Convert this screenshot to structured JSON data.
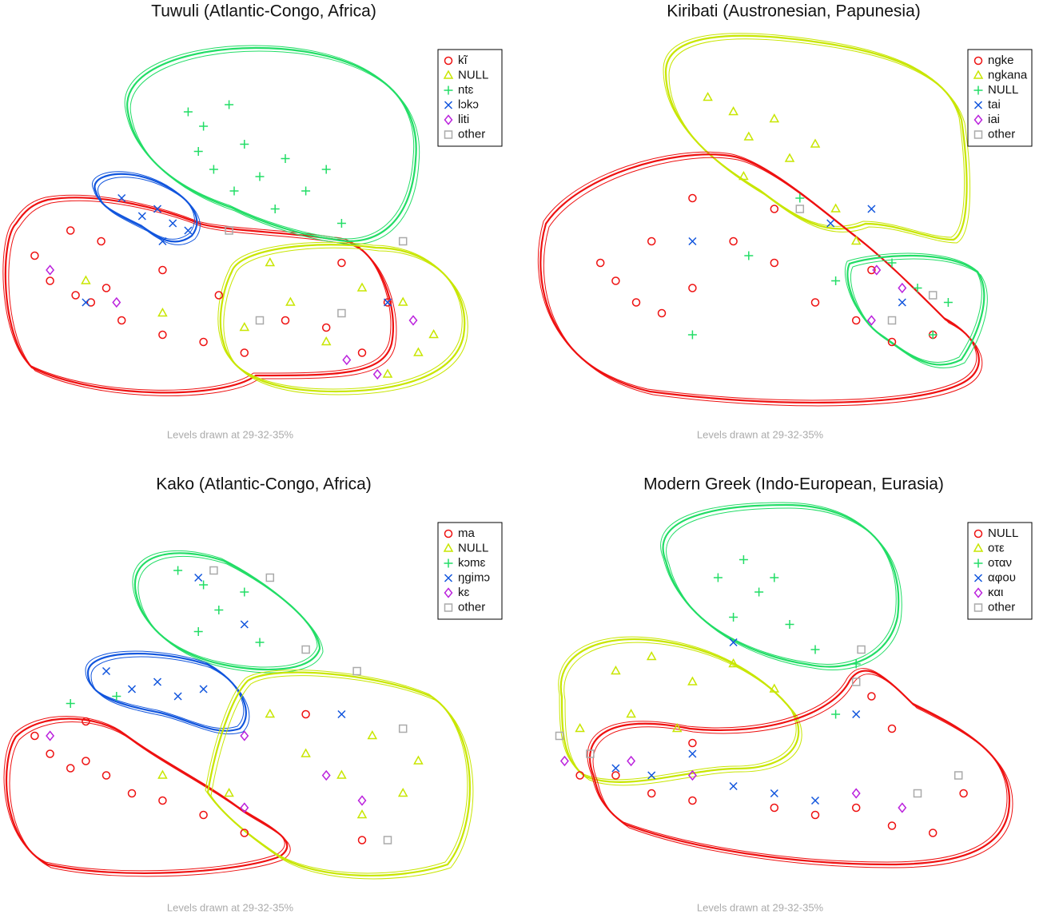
{
  "chart_data": [
    {
      "type": "scatter",
      "title": "Tuwuli (Atlantic-Congo, Africa)",
      "note": "Levels drawn at 29-32-35%",
      "legend": "top-right",
      "xlim": [
        0,
        100
      ],
      "ylim": [
        0,
        100
      ],
      "series": [
        {
          "name": "kĩ",
          "color": "#ee1111",
          "marker": "circle",
          "x": [
            6,
            9,
            14,
            17,
            20,
            23,
            31,
            39,
            47,
            55,
            63,
            70,
            75,
            19,
            13,
            31,
            42,
            66
          ],
          "y": [
            40,
            33,
            29,
            27,
            31,
            22,
            18,
            16,
            13,
            22,
            20,
            13,
            27,
            44,
            47,
            36,
            29,
            38
          ]
        },
        {
          "name": "NULL",
          "color": "#c8e600",
          "marker": "triangle",
          "x": [
            52,
            56,
            63,
            70,
            78,
            81,
            84,
            75,
            31,
            16,
            47
          ],
          "y": [
            38,
            27,
            16,
            31,
            27,
            13,
            18,
            7,
            24,
            33,
            20
          ]
        },
        {
          "name": "ntɛ",
          "color": "#22dd66",
          "marker": "plus",
          "x": [
            36,
            39,
            44,
            47,
            41,
            50,
            55,
            59,
            63,
            38,
            45,
            53,
            66
          ],
          "y": [
            80,
            76,
            82,
            71,
            64,
            62,
            67,
            58,
            64,
            69,
            58,
            53,
            49
          ]
        },
        {
          "name": "lɔkɔ",
          "color": "#1155dd",
          "marker": "cross",
          "x": [
            23,
            27,
            30,
            33,
            36,
            31,
            16,
            75
          ],
          "y": [
            56,
            51,
            53,
            49,
            47,
            44,
            27,
            27
          ]
        },
        {
          "name": "liti",
          "color": "#bb22dd",
          "marker": "diamond",
          "x": [
            9,
            22,
            67,
            73,
            80
          ],
          "y": [
            36,
            27,
            11,
            7,
            22
          ]
        },
        {
          "name": "other",
          "color": "#aaaaaa",
          "marker": "square",
          "x": [
            44,
            50,
            66,
            78
          ],
          "y": [
            47,
            22,
            24,
            44
          ]
        }
      ]
    },
    {
      "type": "scatter",
      "title": "Kiribati (Austronesian, Papunesia)",
      "note": "Levels drawn at 29-32-35%",
      "legend": "top-right",
      "xlim": [
        0,
        100
      ],
      "ylim": [
        0,
        100
      ],
      "series": [
        {
          "name": "ngke",
          "color": "#ee1111",
          "marker": "circle",
          "x": [
            13,
            16,
            20,
            25,
            31,
            39,
            47,
            55,
            63,
            70,
            78,
            31,
            47,
            23,
            66
          ],
          "y": [
            38,
            33,
            27,
            24,
            31,
            44,
            38,
            27,
            22,
            16,
            18,
            56,
            53,
            44,
            36
          ]
        },
        {
          "name": "ngkana",
          "color": "#c8e600",
          "marker": "triangle",
          "x": [
            34,
            39,
            42,
            47,
            50,
            55,
            41,
            59,
            63
          ],
          "y": [
            84,
            80,
            73,
            78,
            67,
            71,
            62,
            53,
            44
          ]
        },
        {
          "name": "NULL",
          "color": "#22dd66",
          "marker": "plus",
          "x": [
            52,
            31,
            70,
            75,
            81,
            78,
            59,
            42
          ],
          "y": [
            56,
            18,
            38,
            31,
            27,
            18,
            33,
            40
          ]
        },
        {
          "name": "tai",
          "color": "#1155dd",
          "marker": "cross",
          "x": [
            58,
            72,
            31,
            66
          ],
          "y": [
            49,
            27,
            44,
            53
          ]
        },
        {
          "name": "iai",
          "color": "#bb22dd",
          "marker": "diamond",
          "x": [
            67,
            72,
            66
          ],
          "y": [
            36,
            31,
            22
          ]
        },
        {
          "name": "other",
          "color": "#aaaaaa",
          "marker": "square",
          "x": [
            52,
            70,
            78
          ],
          "y": [
            53,
            22,
            29
          ]
        }
      ]
    },
    {
      "type": "scatter",
      "title": "Kako (Atlantic-Congo, Africa)",
      "note": "Levels drawn at 29-32-35%",
      "legend": "top-right",
      "xlim": [
        0,
        100
      ],
      "ylim": [
        0,
        100
      ],
      "series": [
        {
          "name": "ma",
          "color": "#ee1111",
          "marker": "circle",
          "x": [
            6,
            9,
            13,
            16,
            20,
            25,
            31,
            39,
            47,
            70,
            59,
            16
          ],
          "y": [
            38,
            33,
            29,
            31,
            27,
            22,
            20,
            16,
            11,
            9,
            44,
            42
          ]
        },
        {
          "name": "NULL",
          "color": "#c8e600",
          "marker": "triangle",
          "x": [
            52,
            59,
            66,
            72,
            78,
            81,
            70,
            31,
            44
          ],
          "y": [
            44,
            33,
            27,
            38,
            22,
            31,
            16,
            27,
            22
          ]
        },
        {
          "name": "kɔmɛ",
          "color": "#22dd66",
          "marker": "plus",
          "x": [
            34,
            39,
            42,
            47,
            38,
            50,
            22,
            13
          ],
          "y": [
            84,
            80,
            73,
            78,
            67,
            64,
            49,
            47
          ]
        },
        {
          "name": "ŋgimɔ",
          "color": "#1155dd",
          "marker": "cross",
          "x": [
            20,
            25,
            30,
            34,
            39,
            38,
            47,
            66
          ],
          "y": [
            56,
            51,
            53,
            49,
            51,
            82,
            69,
            44
          ]
        },
        {
          "name": "kɛ",
          "color": "#bb22dd",
          "marker": "diamond",
          "x": [
            9,
            47,
            63,
            70,
            47
          ],
          "y": [
            38,
            38,
            27,
            20,
            18
          ]
        },
        {
          "name": "other",
          "color": "#aaaaaa",
          "marker": "square",
          "x": [
            41,
            52,
            59,
            69,
            78,
            75
          ],
          "y": [
            84,
            82,
            62,
            56,
            40,
            9
          ]
        }
      ]
    },
    {
      "type": "scatter",
      "title": "Modern Greek (Indo-European, Eurasia)",
      "note": "Levels drawn at 29-32-35%",
      "legend": "top-right",
      "xlim": [
        0,
        100
      ],
      "ylim": [
        0,
        100
      ],
      "series": [
        {
          "name": "NULL",
          "color": "#ee1111",
          "marker": "circle",
          "x": [
            9,
            16,
            23,
            31,
            47,
            55,
            63,
            70,
            78,
            84,
            66,
            70,
            31
          ],
          "y": [
            27,
            27,
            22,
            20,
            18,
            16,
            18,
            13,
            11,
            22,
            49,
            40,
            36
          ]
        },
        {
          "name": "οτε",
          "color": "#c8e600",
          "marker": "triangle",
          "x": [
            16,
            23,
            31,
            39,
            47,
            9,
            19,
            28
          ],
          "y": [
            56,
            60,
            53,
            58,
            51,
            40,
            44,
            40
          ]
        },
        {
          "name": "οταν",
          "color": "#22dd66",
          "marker": "plus",
          "x": [
            36,
            41,
            44,
            47,
            50,
            39,
            55,
            63,
            59
          ],
          "y": [
            82,
            87,
            78,
            82,
            69,
            71,
            62,
            58,
            44
          ]
        },
        {
          "name": "αφου",
          "color": "#1155dd",
          "marker": "cross",
          "x": [
            16,
            23,
            31,
            39,
            47,
            55,
            39,
            63
          ],
          "y": [
            29,
            27,
            33,
            24,
            22,
            20,
            64,
            44
          ]
        },
        {
          "name": "και",
          "color": "#bb22dd",
          "marker": "diamond",
          "x": [
            6,
            19,
            31,
            63,
            72
          ],
          "y": [
            31,
            31,
            27,
            22,
            18
          ]
        },
        {
          "name": "other",
          "color": "#aaaaaa",
          "marker": "square",
          "x": [
            5,
            11,
            63,
            75,
            83,
            64
          ],
          "y": [
            38,
            33,
            53,
            22,
            27,
            62
          ]
        }
      ]
    }
  ]
}
